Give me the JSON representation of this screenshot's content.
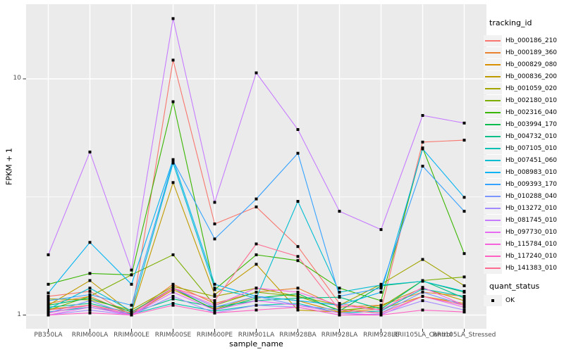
{
  "chart_data": {
    "type": "line",
    "xlabel": "sample_name",
    "ylabel": "FPKM + 1",
    "y_scale": "log10",
    "ylim": [
      0.97,
      20.7
    ],
    "y_ticks": [
      1,
      10
    ],
    "y_tick_labels": [
      "1",
      "10"
    ],
    "y_minor_breaks": [
      3.162
    ],
    "grid": "white major gridlines on gray panel, one log minor line",
    "legend_position": "right",
    "legend_titles": [
      "tracking_id",
      "quant_status"
    ],
    "quant_status_label": "OK",
    "point_shape": "black-square",
    "colors": {
      "panel_bg": "#EBEBEB",
      "grid": "#FFFFFF",
      "tick_text": "#4D4D4D",
      "point": "#000000"
    },
    "categories": [
      "PB350LA",
      "RRIM600LA",
      "RRIM600LE",
      "RRIM600SE",
      "RRIM600PE",
      "RRIM901LA",
      "RRIM928BA",
      "RRIM928LA",
      "RRIM928LE",
      "RRII105LA_Control",
      "RRII105LA_Stressed"
    ],
    "series": [
      {
        "name": "Hb_000186_210",
        "color": "#F8766D",
        "values": [
          1.2,
          1.26,
          1.0,
          12.0,
          2.43,
          2.87,
          1.95,
          1.12,
          1.05,
          5.4,
          5.5
        ]
      },
      {
        "name": "Hb_000189_360",
        "color": "#EA8331",
        "values": [
          1.12,
          1.2,
          1.01,
          1.35,
          1.12,
          1.25,
          1.3,
          1.08,
          1.1,
          1.25,
          1.2
        ]
      },
      {
        "name": "Hb_000829_080",
        "color": "#D89000",
        "values": [
          1.06,
          1.1,
          1.0,
          1.28,
          1.06,
          1.2,
          1.15,
          1.03,
          1.06,
          1.2,
          1.12
        ]
      },
      {
        "name": "Hb_000836_200",
        "color": "#C09B00",
        "values": [
          1.1,
          1.4,
          1.02,
          3.64,
          1.22,
          1.64,
          1.05,
          1.03,
          1.1,
          1.3,
          1.15
        ]
      },
      {
        "name": "Hb_001059_020",
        "color": "#A3A500",
        "values": [
          1.17,
          1.16,
          1.05,
          1.32,
          1.2,
          1.3,
          1.2,
          1.1,
          1.35,
          1.72,
          1.33
        ]
      },
      {
        "name": "Hb_002180_010",
        "color": "#7CAE00",
        "values": [
          1.05,
          1.2,
          1.48,
          1.8,
          1.1,
          1.25,
          1.2,
          1.05,
          1.08,
          1.4,
          1.45
        ]
      },
      {
        "name": "Hb_002316_040",
        "color": "#39B600",
        "values": [
          1.35,
          1.5,
          1.48,
          8.0,
          1.28,
          1.8,
          1.7,
          1.3,
          1.15,
          5.1,
          1.82
        ]
      },
      {
        "name": "Hb_003994_170",
        "color": "#00BB4E",
        "values": [
          1.1,
          1.18,
          1.03,
          1.3,
          1.05,
          1.18,
          1.23,
          1.04,
          1.33,
          1.39,
          1.25
        ]
      },
      {
        "name": "Hb_004732_010",
        "color": "#00C087",
        "values": [
          1.08,
          1.12,
          1.02,
          1.17,
          1.08,
          1.15,
          1.18,
          1.19,
          1.06,
          1.4,
          1.18
        ]
      },
      {
        "name": "Hb_007105_010",
        "color": "#00C0B4",
        "values": [
          1.03,
          1.08,
          1.01,
          1.12,
          1.04,
          1.1,
          1.12,
          1.02,
          1.04,
          1.29,
          1.2
        ]
      },
      {
        "name": "Hb_007451_060",
        "color": "#00BDD2",
        "values": [
          1.06,
          1.3,
          1.04,
          4.4,
          1.3,
          1.18,
          3.03,
          1.25,
          1.34,
          1.39,
          1.26
        ]
      },
      {
        "name": "Hb_008983_010",
        "color": "#00B3F2",
        "values": [
          1.24,
          2.03,
          1.35,
          4.55,
          1.35,
          1.2,
          1.15,
          1.1,
          1.25,
          5.05,
          3.15
        ]
      },
      {
        "name": "Hb_009393_170",
        "color": "#35A2FF",
        "values": [
          1.15,
          1.22,
          1.1,
          4.5,
          2.1,
          3.1,
          4.84,
          1.2,
          1.3,
          4.27,
          2.75
        ]
      },
      {
        "name": "Hb_010288_040",
        "color": "#7C96FF",
        "values": [
          1.02,
          1.15,
          1.0,
          1.3,
          1.08,
          1.2,
          1.1,
          1.05,
          1.02,
          1.25,
          1.1
        ]
      },
      {
        "name": "Hb_013272_010",
        "color": "#A58AFF",
        "values": [
          1.0,
          1.05,
          1.0,
          1.2,
          1.02,
          1.1,
          1.08,
          1.0,
          1.01,
          1.15,
          1.05
        ]
      },
      {
        "name": "Hb_081745_010",
        "color": "#C77CFF",
        "values": [
          1.8,
          4.9,
          1.55,
          18.0,
          3.0,
          10.6,
          6.1,
          2.75,
          2.3,
          7.0,
          6.5
        ]
      },
      {
        "name": "Hb_097730_010",
        "color": "#E76BF3",
        "values": [
          1.0,
          1.08,
          1.0,
          1.25,
          1.05,
          1.15,
          1.1,
          1.02,
          1.0,
          1.2,
          1.08
        ]
      },
      {
        "name": "Hb_115784_010",
        "color": "#F562DC",
        "values": [
          1.02,
          1.1,
          1.0,
          1.3,
          1.1,
          1.3,
          1.25,
          1.1,
          1.05,
          1.31,
          1.1
        ]
      },
      {
        "name": "Hb_117240_010",
        "color": "#FF61C3",
        "values": [
          1.0,
          1.02,
          1.0,
          1.1,
          1.02,
          1.05,
          1.08,
          1.0,
          1.0,
          1.05,
          1.03
        ]
      },
      {
        "name": "Hb_141383_010",
        "color": "#FF6C91",
        "values": [
          1.05,
          1.1,
          1.02,
          1.3,
          1.15,
          2.0,
          1.77,
          1.05,
          1.02,
          1.2,
          1.1
        ]
      }
    ]
  }
}
